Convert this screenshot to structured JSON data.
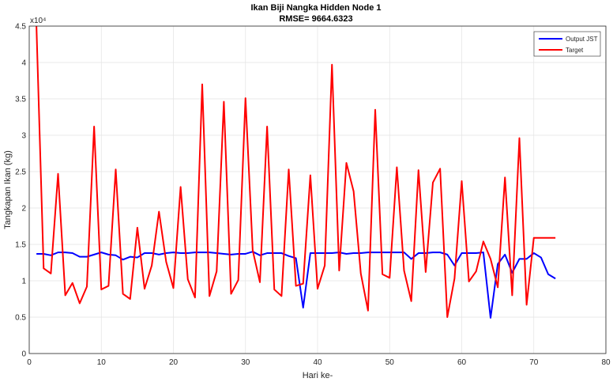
{
  "chart_data": {
    "type": "line",
    "title": "Ikan Biji Nangka Hidden Node 1",
    "subtitle": "RMSE= 9664.6323",
    "xlabel": "Hari ke-",
    "ylabel": "Tangkapan Ikan (kg)",
    "y_exponent_label": "x10⁴",
    "xlim": [
      0,
      80
    ],
    "ylim": [
      0,
      4.5
    ],
    "xticks": [
      0,
      10,
      20,
      30,
      40,
      50,
      60,
      70,
      80
    ],
    "yticks": [
      0,
      0.5,
      1,
      1.5,
      2,
      2.5,
      3,
      3.5,
      4,
      4.5
    ],
    "xtick_labels": [
      "0",
      "10",
      "20",
      "30",
      "40",
      "50",
      "60",
      "70",
      "80"
    ],
    "ytick_labels": [
      "0",
      "0.5",
      "1",
      "1.5",
      "2",
      "2.5",
      "3",
      "3.5",
      "4",
      "4.5"
    ],
    "grid": true,
    "legend_position": "top-right",
    "series": [
      {
        "name": "Output JST",
        "color": "#0000ff",
        "x": [
          1,
          2,
          3,
          4,
          5,
          6,
          7,
          8,
          9,
          10,
          11,
          12,
          13,
          14,
          15,
          16,
          17,
          18,
          19,
          20,
          21,
          22,
          23,
          24,
          25,
          26,
          27,
          28,
          29,
          30,
          31,
          32,
          33,
          34,
          35,
          36,
          37,
          38,
          39,
          40,
          41,
          42,
          43,
          44,
          45,
          46,
          47,
          48,
          49,
          50,
          51,
          52,
          53,
          54,
          55,
          56,
          57,
          58,
          59,
          60,
          61,
          62,
          63,
          64,
          65,
          66,
          67,
          68,
          69,
          70,
          71,
          72,
          73
        ],
        "y": [
          1.37,
          1.37,
          1.35,
          1.39,
          1.39,
          1.38,
          1.33,
          1.33,
          1.36,
          1.39,
          1.36,
          1.35,
          1.29,
          1.33,
          1.32,
          1.38,
          1.38,
          1.36,
          1.38,
          1.39,
          1.38,
          1.38,
          1.39,
          1.39,
          1.39,
          1.38,
          1.37,
          1.36,
          1.37,
          1.37,
          1.4,
          1.35,
          1.38,
          1.38,
          1.38,
          1.34,
          1.31,
          0.63,
          1.38,
          1.38,
          1.38,
          1.38,
          1.39,
          1.37,
          1.38,
          1.38,
          1.39,
          1.39,
          1.39,
          1.39,
          1.39,
          1.39,
          1.3,
          1.38,
          1.38,
          1.39,
          1.39,
          1.36,
          1.21,
          1.38,
          1.38,
          1.38,
          1.39,
          0.49,
          1.23,
          1.36,
          1.11,
          1.3,
          1.3,
          1.38,
          1.32,
          1.09,
          1.03
        ]
      },
      {
        "name": "Target",
        "color": "#ff0000",
        "x": [
          1,
          2,
          3,
          4,
          5,
          6,
          7,
          8,
          9,
          10,
          11,
          12,
          13,
          14,
          15,
          16,
          17,
          18,
          19,
          20,
          21,
          22,
          23,
          24,
          25,
          26,
          27,
          28,
          29,
          30,
          31,
          32,
          33,
          34,
          35,
          36,
          37,
          38,
          39,
          40,
          41,
          42,
          43,
          44,
          45,
          46,
          47,
          48,
          49,
          50,
          51,
          52,
          53,
          54,
          55,
          56,
          57,
          58,
          59,
          60,
          61,
          62,
          63,
          64,
          65,
          66,
          67,
          68,
          69,
          70,
          71,
          72,
          73
        ],
        "y": [
          4.5,
          1.17,
          1.1,
          2.47,
          0.8,
          0.97,
          0.69,
          0.92,
          3.12,
          0.88,
          0.93,
          2.53,
          0.82,
          0.75,
          1.73,
          0.89,
          1.21,
          1.95,
          1.26,
          0.9,
          2.29,
          1.02,
          0.77,
          3.7,
          0.79,
          1.13,
          3.46,
          0.82,
          1.01,
          3.51,
          1.42,
          0.98,
          3.12,
          0.88,
          0.79,
          2.53,
          0.93,
          0.96,
          2.45,
          0.89,
          1.21,
          3.97,
          1.14,
          2.62,
          2.23,
          1.1,
          0.59,
          3.35,
          1.09,
          1.04,
          2.56,
          1.14,
          0.72,
          2.52,
          1.12,
          2.35,
          2.54,
          0.5,
          1.03,
          2.37,
          0.99,
          1.13,
          1.54,
          1.3,
          0.91,
          2.42,
          0.8,
          2.96,
          0.67,
          1.59,
          1.59,
          1.59,
          1.59
        ]
      }
    ]
  }
}
